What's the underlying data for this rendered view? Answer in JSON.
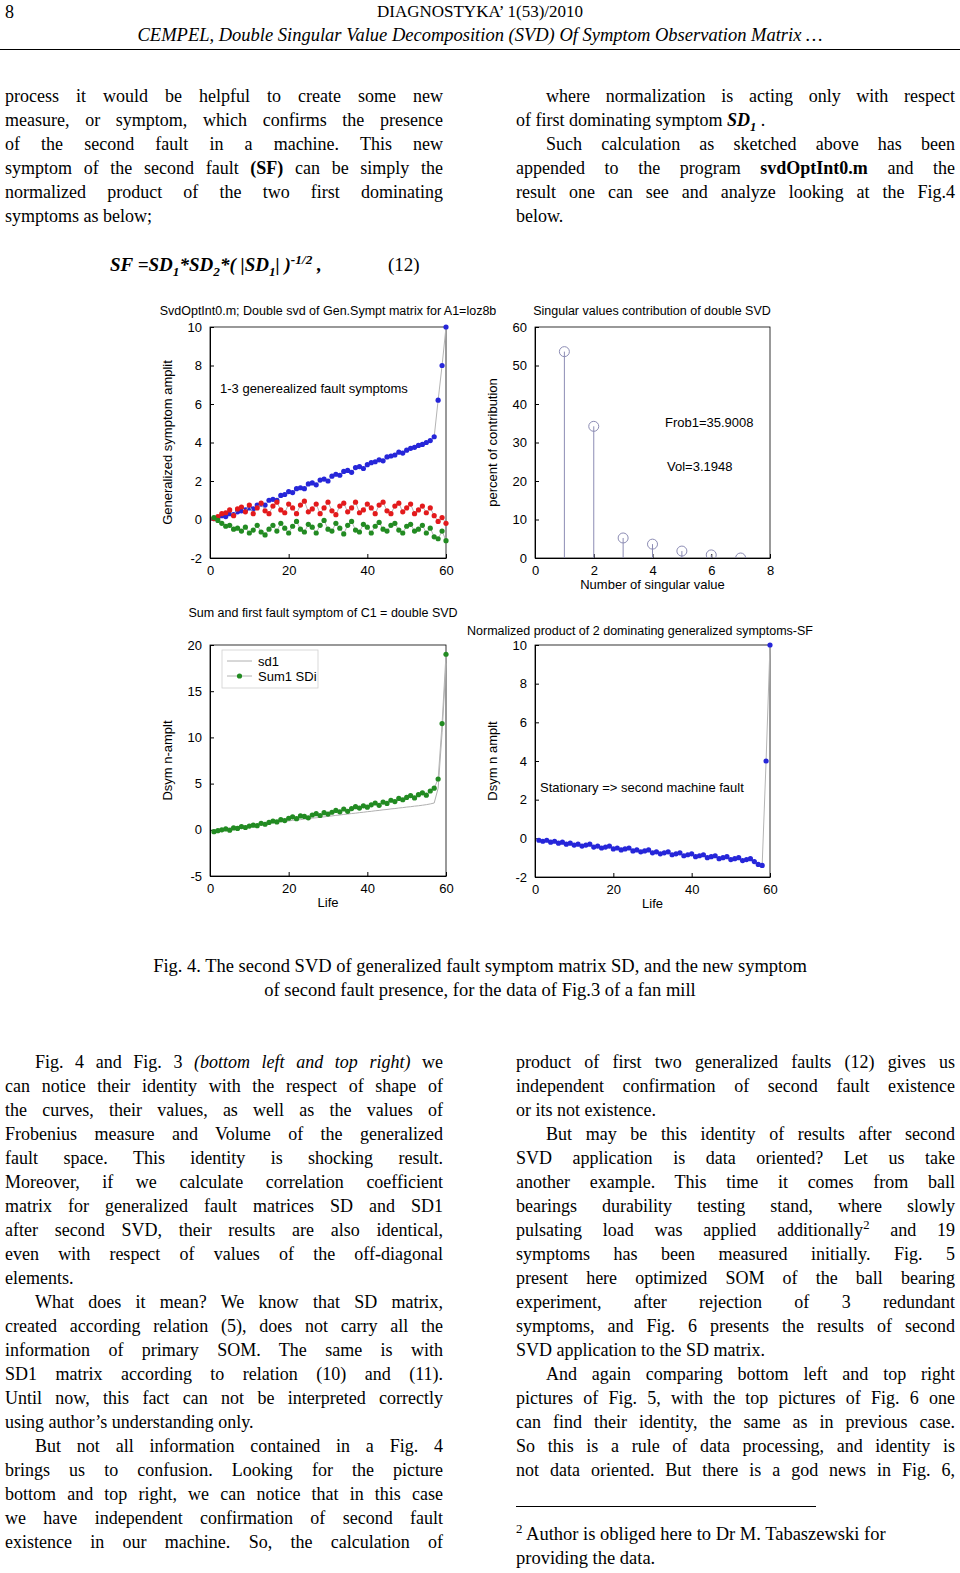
{
  "header": {
    "page_number": "8",
    "journal": "DIAGNOSTYKA’ 1(53)/2010",
    "running_title": "CEMPEL, Double Singular Value Decomposition (SVD) Of Symptom Observation Matrix …"
  },
  "columns": {
    "top_left": [
      {
        "indent": false,
        "continued": false,
        "lines": [
          "process it would be helpful to create some new",
          "measure, or symptom, which confirms the presence",
          "of the second fault in a machine. This new",
          [
            {
              "text": "symptom of the second fault "
            },
            {
              "text": "(SF)",
              "style": "bold"
            },
            {
              "text": " can be simply the"
            }
          ],
          "normalized product of the two first dominating",
          "symptoms as below;"
        ]
      }
    ],
    "top_right": [
      {
        "indent": true,
        "continued": false,
        "lines": [
          "where normalization is acting only with respect",
          [
            {
              "text": "of first dominating symptom "
            },
            {
              "text": "SD",
              "style": "bold italic"
            },
            {
              "text": "1",
              "style": "bold italic sub"
            },
            {
              "text": " ."
            }
          ]
        ]
      },
      {
        "indent": true,
        "continued": false,
        "lines": [
          "Such calculation as sketched above has been",
          [
            {
              "text": "appended to the program "
            },
            {
              "text": "svdOptInt0.m",
              "style": "bold"
            },
            {
              "text": " and the"
            }
          ],
          "result one can see and analyze looking at the Fig.4",
          "below."
        ]
      }
    ],
    "bottom_left": [
      {
        "indent": true,
        "continued": false,
        "lines": [
          [
            {
              "text": "Fig. 4 and Fig. 3 "
            },
            {
              "text": "(bottom left and top right)",
              "style": "italic"
            },
            {
              "text": " we"
            }
          ],
          "can notice their identity with the respect of shape of",
          "the curves, their values, as well as the values of",
          "Frobenius measure and Volume of the generalized",
          "fault space. This identity is shocking result.",
          "Moreover, if we calculate correlation coefficient",
          "matrix for generalized fault matrices SD and SD1",
          "after second SVD, their results are also identical,",
          "even with respect of values of the off-diagonal",
          "elements."
        ]
      },
      {
        "indent": true,
        "continued": false,
        "lines": [
          "What does it mean? We know that SD matrix,",
          "created according relation (5), does not carry all the",
          "information of primary SOM. The same is with",
          "SD1 matrix according to relation (10) and (11).",
          "Until now, this fact can not be interpreted correctly",
          "using author’s understanding only."
        ]
      },
      {
        "indent": true,
        "continued": true,
        "lines": [
          "But not all information contained in a Fig. 4",
          "brings us to confusion. Looking for the picture",
          "bottom and top right, we can notice that in this case",
          "we have independent confirmation of second fault",
          "existence in our machine. So, the calculation of"
        ]
      }
    ],
    "bottom_right": [
      {
        "indent": false,
        "continued": false,
        "lines": [
          "product of first two generalized faults (12) gives us",
          "independent confirmation of second fault existence",
          "or its not existence."
        ]
      },
      {
        "indent": true,
        "continued": false,
        "lines": [
          "But may be this identity of results after second",
          "SVD application is data oriented? Let us take",
          "another example. This time it comes from ball",
          "bearings durability testing stand, where slowly",
          [
            {
              "text": "pulsating load was applied additionally"
            },
            {
              "text": "2",
              "style": "sup"
            },
            {
              "text": " and 19"
            }
          ],
          "symptoms has been measured initially. Fig. 5",
          "present here optimized SOM of the ball bearing",
          "experiment, after rejection of 3 redundant",
          "symptoms, and Fig. 6 presents the results of second",
          "SVD application to the SD matrix."
        ]
      },
      {
        "indent": true,
        "continued": true,
        "lines": [
          "And again comparing bottom left and top right",
          "pictures of Fig. 5, with the top pictures of Fig. 6 one",
          "can find their identity, the same as in previous case.",
          "So this is a rule of data processing, and identity is",
          "not data oriented. But there is a god news in Fig. 6,"
        ]
      }
    ]
  },
  "equation": {
    "segments": [
      {
        "text": "SF =SD",
        "style": "bold italic"
      },
      {
        "text": "1",
        "style": "bold italic sub"
      },
      {
        "text": "*SD",
        "style": "bold italic"
      },
      {
        "text": "2",
        "style": "bold italic sub"
      },
      {
        "text": "*( |SD",
        "style": "bold italic"
      },
      {
        "text": "1",
        "style": "bold italic sub"
      },
      {
        "text": "| )",
        "style": "bold italic"
      },
      {
        "text": "-1/2",
        "style": "bold italic sup"
      },
      {
        "text": " ,",
        "style": "bold italic"
      }
    ],
    "number": "(12)"
  },
  "chart_data": [
    {
      "type": "line",
      "title": "SvdOptInt0.m; Double svd of Gen.Sympt matrix for A1=loz8b",
      "y_label": "Generalized symptom amplit",
      "annotations": [
        "1-3 generealized fault symptoms"
      ],
      "x": [
        1,
        2,
        3,
        4,
        5,
        6,
        7,
        8,
        9,
        10,
        11,
        12,
        13,
        14,
        15,
        16,
        17,
        18,
        19,
        20,
        21,
        22,
        23,
        24,
        25,
        26,
        27,
        28,
        29,
        30,
        31,
        32,
        33,
        34,
        35,
        36,
        37,
        38,
        39,
        40,
        41,
        42,
        43,
        44,
        45,
        46,
        47,
        48,
        49,
        50,
        51,
        52,
        53,
        54,
        55,
        56,
        57,
        58,
        59,
        60
      ],
      "series": [
        {
          "color": "#2626d9",
          "marker": "dot",
          "values": [
            0.05,
            0.1,
            0.2,
            0.15,
            0.3,
            0.25,
            0.4,
            0.45,
            0.5,
            0.6,
            0.55,
            0.75,
            0.8,
            0.75,
            1.0,
            1.05,
            1.0,
            1.25,
            1.3,
            1.45,
            1.4,
            1.6,
            1.65,
            1.6,
            1.85,
            1.9,
            1.8,
            2.05,
            2.1,
            2.0,
            2.25,
            2.35,
            2.3,
            2.5,
            2.55,
            2.45,
            2.7,
            2.75,
            2.65,
            2.85,
            2.95,
            3.0,
            3.1,
            3.05,
            3.25,
            3.3,
            3.35,
            3.5,
            3.45,
            3.6,
            3.7,
            3.75,
            3.85,
            3.9,
            4.0,
            4.1,
            4.3,
            6.2,
            8.0,
            10.0
          ]
        },
        {
          "color": "#e31a1c",
          "marker": "dot",
          "values": [
            0.05,
            0.15,
            0.3,
            0.35,
            0.5,
            0.2,
            0.55,
            0.65,
            0.4,
            0.75,
            0.3,
            0.6,
            0.85,
            0.45,
            0.3,
            0.7,
            0.9,
            0.5,
            0.35,
            0.8,
            0.6,
            0.3,
            0.75,
            0.95,
            0.4,
            0.55,
            0.8,
            0.3,
            0.6,
            0.9,
            0.45,
            0.25,
            0.7,
            0.85,
            0.4,
            0.6,
            0.9,
            0.35,
            0.5,
            0.8,
            0.6,
            0.3,
            0.75,
            0.9,
            0.45,
            0.3,
            0.7,
            0.85,
            0.4,
            0.6,
            0.8,
            0.3,
            0.5,
            0.7,
            0.35,
            0.6,
            0.2,
            -0.1,
            0.1,
            -0.2
          ]
        },
        {
          "color": "#228b22",
          "marker": "dot",
          "values": [
            0.1,
            -0.05,
            -0.2,
            -0.35,
            -0.3,
            -0.5,
            -0.45,
            -0.6,
            -0.4,
            -0.7,
            -0.55,
            -0.3,
            -0.65,
            -0.8,
            -0.5,
            -0.3,
            -0.6,
            -0.2,
            -0.45,
            -0.7,
            -0.35,
            -0.1,
            -0.5,
            -0.65,
            -0.25,
            -0.4,
            -0.7,
            -0.3,
            -0.05,
            -0.5,
            -0.6,
            -0.2,
            -0.45,
            -0.75,
            -0.3,
            -0.1,
            -0.55,
            -0.65,
            -0.25,
            -0.4,
            -0.7,
            -0.35,
            -0.15,
            -0.5,
            -0.6,
            -0.3,
            -0.2,
            -0.55,
            -0.7,
            -0.35,
            -0.25,
            -0.6,
            -0.5,
            -0.3,
            -0.7,
            -0.45,
            -0.9,
            -1.0,
            -0.6,
            -1.1
          ]
        }
      ],
      "xlim": [
        0,
        60
      ],
      "xticks": [
        0,
        20,
        40,
        60
      ],
      "ylim": [
        -2,
        10
      ],
      "yticks": [
        -2,
        0,
        2,
        4,
        6,
        8,
        10
      ]
    },
    {
      "type": "stem",
      "title": "Singular values contribution of double SVD",
      "x_label": "Number of singular value",
      "y_label": "percent of contribution",
      "annotations": [
        "Frob1=35.9008",
        "Vol=3.1948"
      ],
      "x": [
        1,
        2,
        3,
        4,
        5,
        6,
        7
      ],
      "values": [
        53.6,
        34.2,
        5.2,
        3.6,
        1.8,
        0.8,
        0.0
      ],
      "color": "#8c8cb4",
      "marker": "circle",
      "xlim": [
        0,
        8
      ],
      "xticks": [
        0,
        2,
        4,
        6,
        8
      ],
      "ylim": [
        0,
        60
      ],
      "yticks": [
        0,
        10,
        20,
        30,
        40,
        50,
        60
      ]
    },
    {
      "type": "line",
      "title": "Sum and first fault symptom of C1 = double SVD",
      "x_label": "Life",
      "y_label": "Dsym n-amplt",
      "legend": "upper left",
      "x": [
        1,
        2,
        3,
        4,
        5,
        6,
        7,
        8,
        9,
        10,
        11,
        12,
        13,
        14,
        15,
        16,
        17,
        18,
        19,
        20,
        21,
        22,
        23,
        24,
        25,
        26,
        27,
        28,
        29,
        30,
        31,
        32,
        33,
        34,
        35,
        36,
        37,
        38,
        39,
        40,
        41,
        42,
        43,
        44,
        45,
        46,
        47,
        48,
        49,
        50,
        51,
        52,
        53,
        54,
        55,
        56,
        57,
        58,
        59,
        60
      ],
      "series": [
        {
          "name": "sd1",
          "color": "#b0b0b0",
          "marker": "none",
          "values": [
            0.0,
            0.04,
            0.1,
            0.14,
            0.2,
            0.26,
            0.3,
            0.36,
            0.4,
            0.46,
            0.5,
            0.56,
            0.62,
            0.66,
            0.72,
            0.76,
            0.82,
            0.86,
            0.92,
            0.96,
            1.02,
            1.06,
            1.1,
            1.16,
            1.2,
            1.26,
            1.3,
            1.36,
            1.4,
            1.46,
            1.5,
            1.56,
            1.6,
            1.66,
            1.7,
            1.76,
            1.8,
            1.86,
            1.9,
            1.96,
            2.0,
            2.06,
            2.1,
            2.16,
            2.2,
            2.26,
            2.3,
            2.36,
            2.4,
            2.46,
            2.5,
            2.56,
            2.6,
            2.66,
            2.72,
            2.8,
            2.9,
            4.5,
            10.5,
            18.0
          ]
        },
        {
          "name": "Sum1 SDi",
          "color": "#228b22",
          "marker": "dot",
          "values": [
            -0.2,
            -0.1,
            0.0,
            0.1,
            -0.05,
            0.2,
            0.15,
            0.35,
            0.25,
            0.4,
            0.5,
            0.45,
            0.7,
            0.6,
            0.8,
            0.95,
            0.85,
            1.1,
            1.0,
            1.25,
            1.4,
            1.2,
            1.5,
            1.45,
            1.3,
            1.6,
            1.75,
            1.55,
            1.85,
            1.7,
            1.9,
            2.1,
            1.95,
            2.25,
            2.0,
            2.3,
            2.5,
            2.35,
            2.6,
            2.45,
            2.7,
            2.9,
            2.65,
            3.0,
            2.85,
            3.2,
            3.05,
            3.4,
            3.25,
            3.5,
            3.7,
            3.45,
            3.8,
            4.0,
            3.75,
            4.2,
            4.5,
            5.5,
            11.5,
            19.0
          ]
        }
      ],
      "xlim": [
        0,
        60
      ],
      "xticks": [
        0,
        20,
        40,
        60
      ],
      "ylim": [
        -5,
        20
      ],
      "yticks": [
        -5,
        0,
        5,
        10,
        15,
        20
      ]
    },
    {
      "type": "line",
      "title": "Normalized product of 2 dominating generalized symptoms-SF",
      "x_label": "Life",
      "y_label": "Dsym n amplt",
      "annotations": [
        "Stationary => second machine fault"
      ],
      "x": [
        1,
        2,
        3,
        4,
        5,
        6,
        7,
        8,
        9,
        10,
        11,
        12,
        13,
        14,
        15,
        16,
        17,
        18,
        19,
        20,
        21,
        22,
        23,
        24,
        25,
        26,
        27,
        28,
        29,
        30,
        31,
        32,
        33,
        34,
        35,
        36,
        37,
        38,
        39,
        40,
        41,
        42,
        43,
        44,
        45,
        46,
        47,
        48,
        49,
        50,
        51,
        52,
        53,
        54,
        55,
        56,
        57,
        58,
        59,
        60
      ],
      "series": [
        {
          "color": "#2626d9",
          "marker": "dot",
          "values": [
            -0.1,
            -0.15,
            -0.1,
            -0.2,
            -0.15,
            -0.25,
            -0.2,
            -0.3,
            -0.25,
            -0.35,
            -0.3,
            -0.4,
            -0.35,
            -0.3,
            -0.45,
            -0.4,
            -0.5,
            -0.45,
            -0.4,
            -0.55,
            -0.5,
            -0.6,
            -0.55,
            -0.5,
            -0.65,
            -0.6,
            -0.7,
            -0.65,
            -0.6,
            -0.75,
            -0.7,
            -0.8,
            -0.75,
            -0.7,
            -0.85,
            -0.8,
            -0.75,
            -0.9,
            -0.85,
            -0.8,
            -0.95,
            -0.9,
            -0.85,
            -1.0,
            -0.95,
            -0.9,
            -1.05,
            -1.0,
            -0.95,
            -1.1,
            -1.05,
            -1.0,
            -1.15,
            -1.1,
            -1.05,
            -1.2,
            -1.35,
            -1.4,
            4.0,
            10.0
          ]
        }
      ],
      "xlim": [
        0,
        60
      ],
      "xticks": [
        0,
        20,
        40,
        60
      ],
      "ylim": [
        -2,
        10
      ],
      "yticks": [
        -2,
        0,
        2,
        4,
        6,
        8,
        10
      ]
    }
  ],
  "caption": [
    "Fig. 4. The second SVD of generalized fault symptom matrix SD, and the new symptom",
    "of second fault presence, for the data of Fig.3 of a fan mill"
  ],
  "footnote": {
    "mark": "2",
    "lines": [
      "Author is obliged here to Dr M. Tabaszewski for",
      "providing the data."
    ]
  }
}
